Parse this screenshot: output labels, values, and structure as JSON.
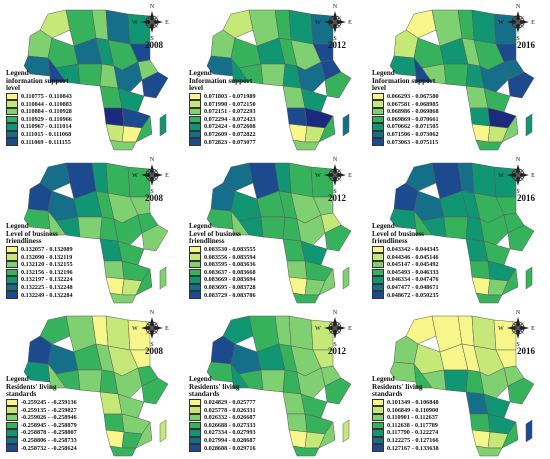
{
  "colors": [
    "#f6f68a",
    "#c6e879",
    "#7fd070",
    "#35b25b",
    "#109673",
    "#166f8a",
    "#1b4b8e",
    "#1b2a7c"
  ],
  "compass_labels": {
    "n": "N",
    "s": "S",
    "w": "W",
    "e": "E"
  },
  "rows": [
    {
      "panels": [
        {
          "year": "2008",
          "legend_title": [
            "Legend",
            "information support",
            "level"
          ],
          "ranges": [
            "0.110775 - 0.110843",
            "0.110844 - 0.110883",
            "0.110884 - 0.110928",
            "0.110929 - 0.110966",
            "0.110967 - 0.111014",
            "0.111015 - 0.111068",
            "0.111069 - 0.111155"
          ],
          "regions": [
            1,
            3,
            2,
            5,
            4,
            6,
            2,
            3,
            5,
            4,
            3,
            2,
            5,
            6,
            4,
            3,
            2,
            5,
            6,
            3,
            4,
            7,
            6,
            1,
            0,
            2,
            3,
            4
          ]
        },
        {
          "year": "2012",
          "legend_title": [
            "Legend",
            "Information support",
            "level"
          ],
          "ranges": [
            "0.071803 - 0.071989",
            "0.071990 - 0.072150",
            "0.072151 - 0.072293",
            "0.072294 - 0.072423",
            "0.072424 - 0.072608",
            "0.072609 - 0.072822",
            "0.072823 - 0.073077"
          ],
          "regions": [
            1,
            2,
            3,
            4,
            5,
            6,
            2,
            3,
            4,
            3,
            2,
            6,
            5,
            4,
            3,
            2,
            4,
            5,
            3,
            2,
            4,
            6,
            7,
            0,
            1,
            2,
            3,
            5
          ]
        },
        {
          "year": "2016",
          "legend_title": [
            "Legend",
            "Information support",
            "level"
          ],
          "ranges": [
            "0.066293 - 0.067580",
            "0.067581 - 0.068985",
            "0.068986 - 0.069868",
            "0.069869 - 0.070661",
            "0.070662 - 0.071505",
            "0.071506 - 0.073062",
            "0.073063 - 0.075115"
          ],
          "regions": [
            0,
            2,
            3,
            4,
            5,
            6,
            1,
            3,
            4,
            2,
            3,
            5,
            4,
            6,
            2,
            3,
            4,
            5,
            6,
            2,
            3,
            4,
            7,
            0,
            1,
            3,
            2,
            4
          ]
        }
      ]
    },
    {
      "panels": [
        {
          "year": "2008",
          "legend_title": [
            "Legend",
            "Level of business",
            "friendliness"
          ],
          "ranges": [
            "0.132057 - 0.132089",
            "0.132090 - 0.132119",
            "0.132120 - 0.132155",
            "0.132156 - 0.132196",
            "0.132197 - 0.132224",
            "0.132225 - 0.132248",
            "0.132249 - 0.132284"
          ],
          "regions": [
            5,
            6,
            4,
            3,
            3,
            2,
            6,
            5,
            4,
            3,
            2,
            3,
            3,
            2,
            4,
            2,
            3,
            3,
            2,
            4,
            3,
            2,
            3,
            0,
            1,
            2,
            3,
            2
          ]
        },
        {
          "year": "2012",
          "legend_title": [
            "Legend",
            "Level of business",
            "friendliness"
          ],
          "ranges": [
            "0.083530 - 0.083555",
            "0.083556 - 0.083594",
            "0.083595 - 0.083636",
            "0.083637 - 0.083668",
            "0.083669 - 0.083694",
            "0.083695 - 0.083728",
            "0.083729 - 0.083786"
          ],
          "regions": [
            5,
            6,
            4,
            3,
            3,
            2,
            5,
            4,
            3,
            3,
            2,
            1,
            3,
            2,
            4,
            3,
            3,
            2,
            3,
            3,
            4,
            2,
            3,
            0,
            2,
            3,
            2,
            2
          ]
        },
        {
          "year": "2016",
          "legend_title": [
            "Legend",
            "Level of business",
            "friendliness"
          ],
          "ranges": [
            "0.043342 - 0.044345",
            "0.044346 - 0.045146",
            "0.045147 - 0.045492",
            "0.045493 - 0.046333",
            "0.046334 - 0.047476",
            "0.047477 - 0.048671",
            "0.048672 - 0.050235"
          ],
          "regions": [
            5,
            6,
            5,
            4,
            4,
            3,
            6,
            5,
            4,
            4,
            3,
            3,
            4,
            3,
            4,
            3,
            4,
            3,
            3,
            4,
            3,
            3,
            4,
            0,
            2,
            3,
            3,
            3
          ]
        }
      ]
    },
    {
      "panels": [
        {
          "year": "2008",
          "legend_title": [
            "Legend",
            "Residents' living",
            "standards"
          ],
          "ranges": [
            "-0.259245 - -0.259136",
            "-0.259135 - -0.259027",
            "-0.259026 - -0.258946",
            "-0.258945 - -0.258879",
            "-0.258878 - -0.258807",
            "-0.258806 - -0.258733",
            "-0.258732 - -0.258624"
          ],
          "regions": [
            3,
            2,
            0,
            1,
            0,
            0,
            6,
            5,
            3,
            2,
            1,
            3,
            4,
            2,
            3,
            2,
            3,
            2,
            3,
            1,
            2,
            3,
            2,
            0,
            3,
            3,
            2,
            1
          ]
        },
        {
          "year": "2012",
          "legend_title": [
            "Legend",
            "Residents' living",
            "standards"
          ],
          "ranges": [
            "0.024829 - 0.025777",
            "0.025778 - 0.026331",
            "0.026332 - 0.026687",
            "0.026688 - 0.027333",
            "0.027334 - 0.027993",
            "0.027994 - 0.028687",
            "0.028688 - 0.029716"
          ],
          "regions": [
            4,
            3,
            2,
            2,
            1,
            1,
            6,
            5,
            4,
            3,
            2,
            2,
            3,
            4,
            3,
            2,
            3,
            2,
            3,
            2,
            3,
            2,
            3,
            0,
            1,
            3,
            2,
            1
          ]
        },
        {
          "year": "2016",
          "legend_title": [
            "Legend",
            "Residents' living",
            "standards"
          ],
          "ranges": [
            "0.101349 - 0.106848",
            "0.106849 - 0.110900",
            "0.110901 - 0.112637",
            "0.112638 - 0.117789",
            "0.117790 - 0.122274",
            "0.122275 - 0.127166",
            "0.127167 - 0.133638"
          ],
          "regions": [
            0,
            0,
            0,
            1,
            0,
            0,
            2,
            1,
            0,
            0,
            1,
            2,
            2,
            3,
            2,
            4,
            3,
            2,
            3,
            5,
            4,
            3,
            4,
            0,
            1,
            2,
            3,
            6
          ]
        }
      ]
    }
  ]
}
